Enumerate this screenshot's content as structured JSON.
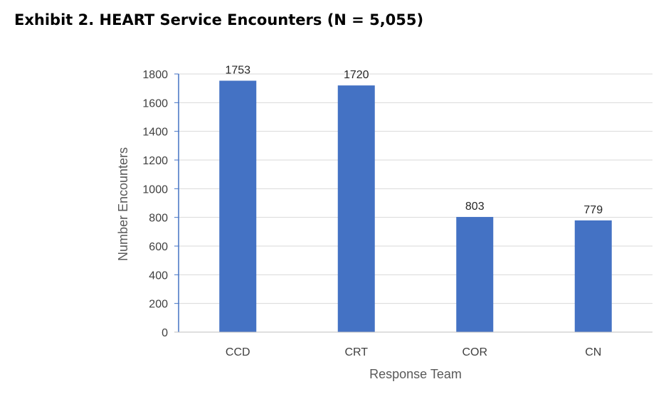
{
  "title": "Exhibit 2. HEART Service Encounters (N = 5,055)",
  "chart_data": {
    "type": "bar",
    "categories": [
      "CCD",
      "CRT",
      "COR",
      "CN"
    ],
    "values": [
      1753,
      1720,
      803,
      779
    ],
    "data_labels": [
      "1753",
      "1720",
      "803",
      "779"
    ],
    "xlabel": "Response Team",
    "ylabel": "Number Encounters",
    "ylim": [
      0,
      1800
    ],
    "yticks": [
      0,
      200,
      400,
      600,
      800,
      1000,
      1200,
      1400,
      1600,
      1800
    ],
    "grid": true,
    "legend": "none",
    "bar_color": "#4472C4",
    "grid_color": "#D9D9D9",
    "axis_color": "#4472C4"
  }
}
